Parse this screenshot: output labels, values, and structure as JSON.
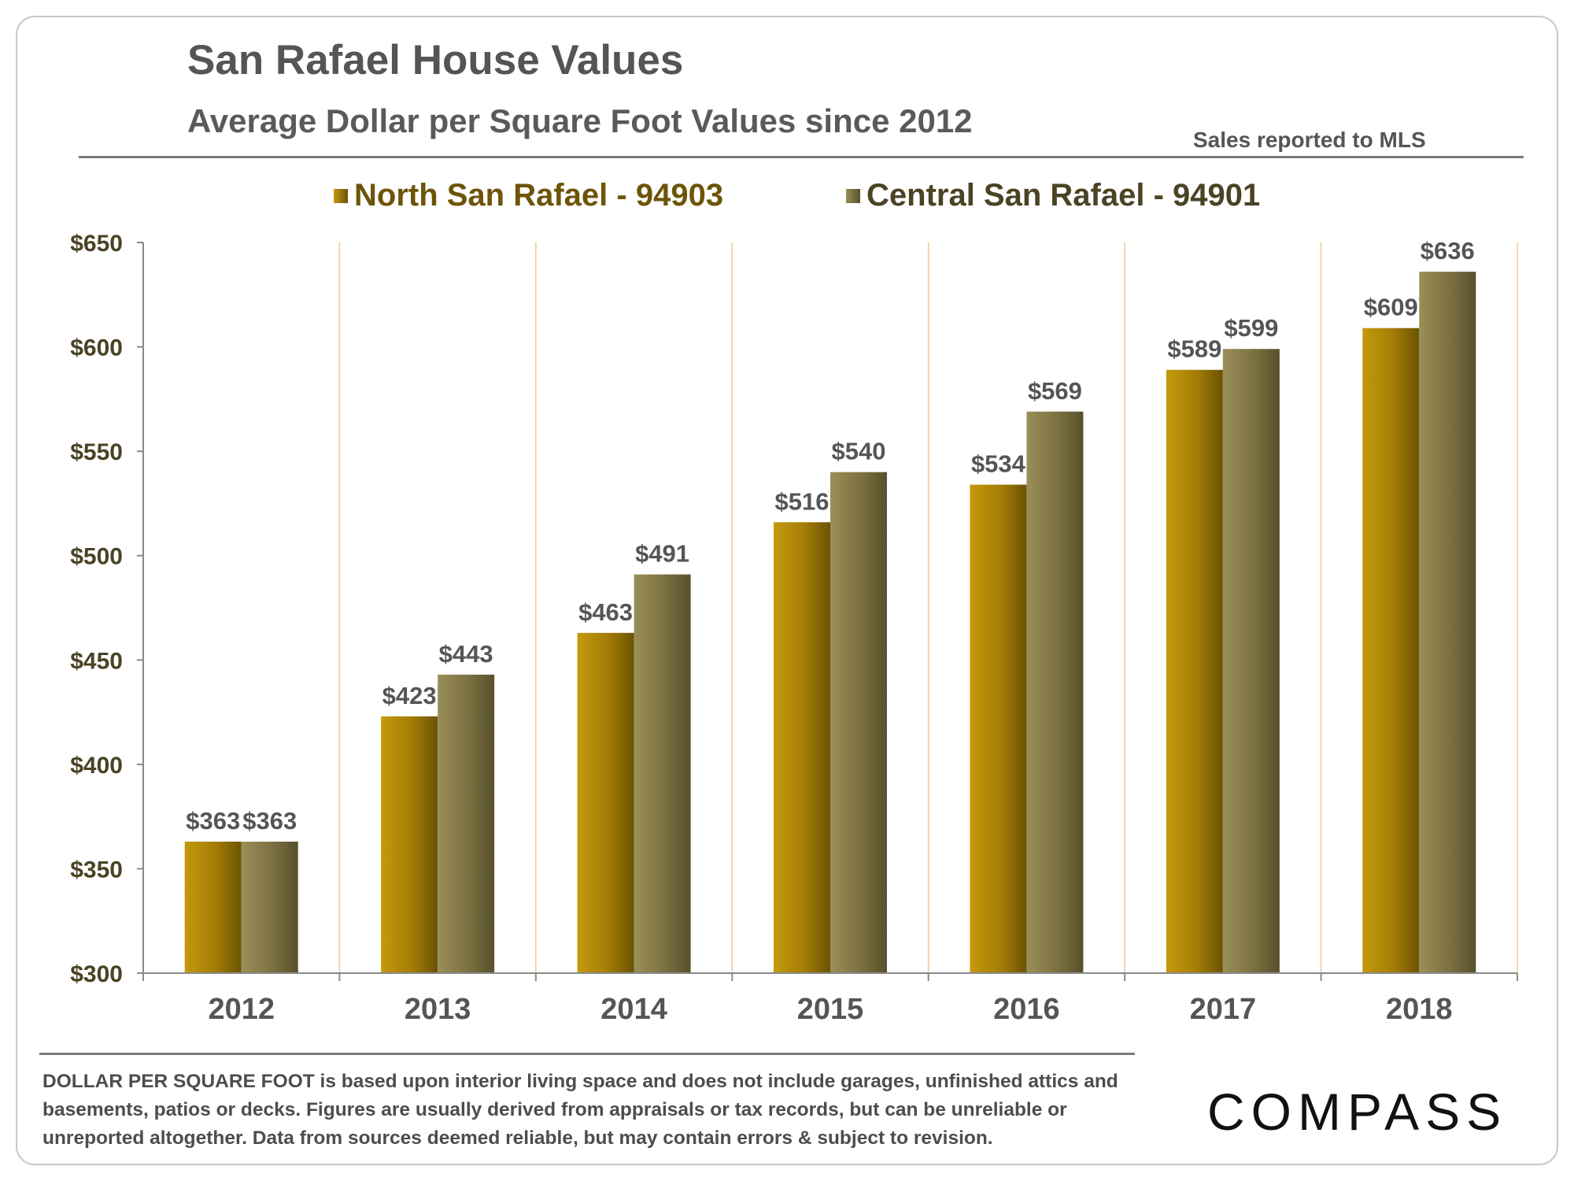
{
  "header": {
    "title": "San Rafael House Values",
    "subtitle": "Average Dollar per Square Foot Values since 2012",
    "source_note": "Sales reported to MLS"
  },
  "colors": {
    "north": "#a07c08",
    "central": "#7e7440",
    "axis_text": "#4a4324",
    "gridline": "#f0c898",
    "label_text": "#555555"
  },
  "chart_data": {
    "type": "bar",
    "title": "San Rafael House Values",
    "xlabel": "",
    "ylabel": "",
    "categories": [
      "2012",
      "2013",
      "2014",
      "2015",
      "2016",
      "2017",
      "2018"
    ],
    "series": [
      {
        "name": "North San Rafael - 94903",
        "values": [
          363,
          423,
          463,
          516,
          534,
          589,
          609
        ]
      },
      {
        "name": "Central San Rafael - 94901",
        "values": [
          363,
          443,
          491,
          540,
          569,
          599,
          636
        ]
      }
    ],
    "ylim": [
      300,
      650
    ],
    "yticks": [
      300,
      350,
      400,
      450,
      500,
      550,
      600,
      650
    ],
    "ytick_labels": [
      "$300",
      "$350",
      "$400",
      "$450",
      "$500",
      "$550",
      "$600",
      "$650"
    ],
    "value_prefix": "$",
    "legend": "top-center",
    "grid": "vertical category separators"
  },
  "footer": {
    "footnote": "DOLLAR PER SQUARE FOOT is based upon interior living space and does not include garages, unfinished attics and basements, patios or decks. Figures are usually derived from appraisals or tax records, but can be unreliable or unreported altogether. Data from sources deemed reliable, but may contain errors & subject to revision.",
    "logo_text": "COMPASS"
  }
}
